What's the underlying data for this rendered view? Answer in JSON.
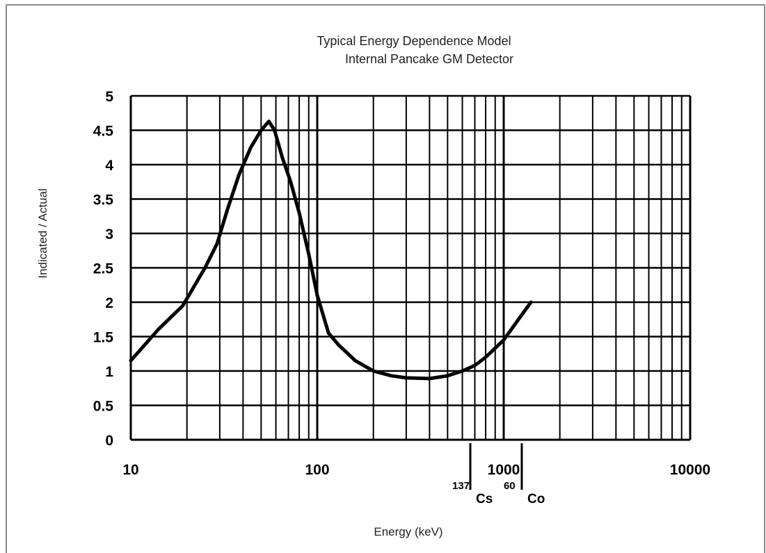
{
  "chart_data": {
    "type": "line",
    "title": "Typical Energy Dependence Model",
    "subtitle": "Internal Pancake GM Detector",
    "xlabel": "Energy (keV)",
    "ylabel": "Indicated / Actual",
    "x_scale": "log",
    "xlim": [
      10,
      10000
    ],
    "ylim": [
      0,
      5
    ],
    "x_ticks": [
      "10",
      "100",
      "1000",
      "10000"
    ],
    "y_ticks": [
      "0",
      "0.5",
      "1",
      "1.5",
      "2",
      "2.5",
      "3",
      "3.5",
      "4",
      "4.5",
      "5"
    ],
    "grid": true,
    "series": [
      {
        "x": [
          10,
          14,
          19,
          21,
          25,
          29,
          33,
          38,
          44,
          50,
          55,
          59,
          65,
          72,
          80,
          90,
          100,
          115,
          130,
          160,
          200,
          250,
          300,
          400,
          500,
          600,
          700,
          800,
          1000,
          1200,
          1400
        ],
        "y": [
          1.15,
          1.6,
          1.95,
          2.15,
          2.5,
          2.85,
          3.35,
          3.85,
          4.25,
          4.5,
          4.63,
          4.5,
          4.1,
          3.75,
          3.3,
          2.7,
          2.1,
          1.55,
          1.38,
          1.15,
          1.0,
          0.93,
          0.9,
          0.89,
          0.93,
          1.0,
          1.08,
          1.2,
          1.45,
          1.75,
          2.0
        ]
      }
    ],
    "markers": [
      {
        "x": 662,
        "mass": "137",
        "symbol": "Cs"
      },
      {
        "x": 1250,
        "mass": "60",
        "symbol": "Co"
      }
    ]
  }
}
